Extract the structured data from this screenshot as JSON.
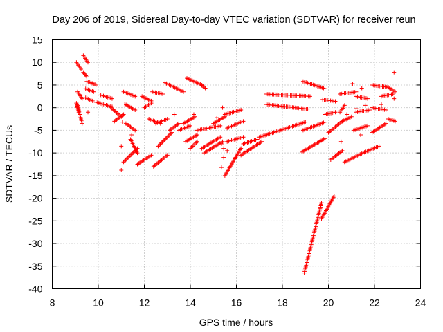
{
  "chart_data": {
    "type": "scatter",
    "title": "Day 206 of 2019, Sidereal Day-to-day VTEC variation (SDTVAR) for receiver reun",
    "xlabel": "GPS time / hours",
    "ylabel": "SDTVAR / TECUs",
    "xlim": [
      8,
      24
    ],
    "ylim": [
      -40,
      15
    ],
    "xticks": [
      8,
      10,
      12,
      14,
      16,
      18,
      20,
      22,
      24
    ],
    "yticks": [
      15,
      10,
      5,
      0,
      -5,
      -10,
      -15,
      -20,
      -25,
      -30,
      -35,
      -40
    ],
    "grid": true,
    "legend": "none",
    "marker": "+",
    "series": [
      {
        "name": "SDTVAR",
        "color": "#ff0000",
        "segments": [
          {
            "x0": 9.05,
            "x1": 9.25,
            "y0": 10.0,
            "y1": 8.5
          },
          {
            "x0": 9.35,
            "x1": 9.55,
            "y0": 11.5,
            "y1": 10.0
          },
          {
            "x0": 9.1,
            "x1": 9.3,
            "y0": 3.5,
            "y1": 2.0
          },
          {
            "x0": 9.05,
            "x1": 9.15,
            "y0": 1.0,
            "y1": -1.0
          },
          {
            "x0": 9.1,
            "x1": 9.3,
            "y0": 0.5,
            "y1": -3.5
          },
          {
            "x0": 9.35,
            "x1": 9.5,
            "y0": 7.8,
            "y1": 6.8
          },
          {
            "x0": 9.5,
            "x1": 9.85,
            "y0": 5.8,
            "y1": 5.2
          },
          {
            "x0": 9.45,
            "x1": 9.8,
            "y0": 4.2,
            "y1": 3.5
          },
          {
            "x0": 9.45,
            "x1": 9.75,
            "y0": 2.2,
            "y1": 1.5
          },
          {
            "x0": 9.9,
            "x1": 10.6,
            "y0": 1.2,
            "y1": 0.2
          },
          {
            "x0": 10.1,
            "x1": 10.6,
            "y0": 2.8,
            "y1": 2.0
          },
          {
            "x0": 10.55,
            "x1": 11.0,
            "y0": 0.0,
            "y1": -2.0
          },
          {
            "x0": 10.7,
            "x1": 11.1,
            "y0": -3.0,
            "y1": -1.5
          },
          {
            "x0": 11.1,
            "x1": 11.6,
            "y0": 3.5,
            "y1": 2.5
          },
          {
            "x0": 11.15,
            "x1": 11.6,
            "y0": 0.8,
            "y1": -0.5
          },
          {
            "x0": 11.2,
            "x1": 11.6,
            "y0": -3.5,
            "y1": -5.0
          },
          {
            "x0": 11.4,
            "x1": 11.7,
            "y0": -7.0,
            "y1": -10.0
          },
          {
            "x0": 11.1,
            "x1": 11.7,
            "y0": -12.0,
            "y1": -9.0
          },
          {
            "x0": 11.7,
            "x1": 12.3,
            "y0": -12.5,
            "y1": -10.5
          },
          {
            "x0": 11.9,
            "x1": 12.3,
            "y0": 2.5,
            "y1": 1.5
          },
          {
            "x0": 12.0,
            "x1": 12.3,
            "y0": 0.0,
            "y1": 1.0
          },
          {
            "x0": 12.2,
            "x1": 12.7,
            "y0": -2.5,
            "y1": -3.5
          },
          {
            "x0": 12.35,
            "x1": 12.8,
            "y0": 3.5,
            "y1": 3.0
          },
          {
            "x0": 12.5,
            "x1": 13.0,
            "y0": -3.5,
            "y1": -2.5
          },
          {
            "x0": 12.6,
            "x1": 13.2,
            "y0": -8.5,
            "y1": -5.5
          },
          {
            "x0": 12.4,
            "x1": 13.0,
            "y0": -13.0,
            "y1": -10.5
          },
          {
            "x0": 12.9,
            "x1": 13.7,
            "y0": 5.5,
            "y1": 3.5
          },
          {
            "x0": 13.1,
            "x1": 13.5,
            "y0": -5.0,
            "y1": -3.5
          },
          {
            "x0": 13.5,
            "x1": 14.0,
            "y0": -5.0,
            "y1": -4.0
          },
          {
            "x0": 13.85,
            "x1": 14.5,
            "y0": 6.5,
            "y1": 5.0
          },
          {
            "x0": 14.5,
            "x1": 14.65,
            "y0": 4.9,
            "y1": 4.3
          },
          {
            "x0": 13.7,
            "x1": 14.2,
            "y0": -3.5,
            "y1": -2.0
          },
          {
            "x0": 13.8,
            "x1": 14.3,
            "y0": -7.5,
            "y1": -6.0
          },
          {
            "x0": 14.0,
            "x1": 14.3,
            "y0": -9.0,
            "y1": -7.5
          },
          {
            "x0": 14.3,
            "x1": 15.3,
            "y0": -5.0,
            "y1": -4.0
          },
          {
            "x0": 14.5,
            "x1": 15.3,
            "y0": -9.0,
            "y1": -6.5
          },
          {
            "x0": 14.6,
            "x1": 15.4,
            "y0": -10.0,
            "y1": -7.5
          },
          {
            "x0": 15.0,
            "x1": 15.5,
            "y0": -3.5,
            "y1": -2.0
          },
          {
            "x0": 15.5,
            "x1": 16.2,
            "y0": -15.0,
            "y1": -9.0
          },
          {
            "x0": 15.5,
            "x1": 16.2,
            "y0": -1.5,
            "y1": -0.5
          },
          {
            "x0": 15.6,
            "x1": 16.3,
            "y0": -4.5,
            "y1": -3.0
          },
          {
            "x0": 15.6,
            "x1": 16.3,
            "y0": -7.5,
            "y1": -6.5
          },
          {
            "x0": 16.2,
            "x1": 17.1,
            "y0": -10.5,
            "y1": -7.5
          },
          {
            "x0": 16.3,
            "x1": 16.9,
            "y0": -8.0,
            "y1": -7.0
          },
          {
            "x0": 17.0,
            "x1": 19.0,
            "y0": -6.5,
            "y1": -3.2
          },
          {
            "x0": 17.3,
            "x1": 19.2,
            "y0": 3.0,
            "y1": 2.5
          },
          {
            "x0": 17.3,
            "x1": 19.1,
            "y0": 0.7,
            "y1": -0.3
          },
          {
            "x0": 18.9,
            "x1": 19.85,
            "y0": 5.8,
            "y1": 4.2
          },
          {
            "x0": 18.85,
            "x1": 19.85,
            "y0": -9.8,
            "y1": -6.8
          },
          {
            "x0": 18.9,
            "x1": 19.85,
            "y0": -5.0,
            "y1": -3.2
          },
          {
            "x0": 18.95,
            "x1": 19.7,
            "y0": -36.5,
            "y1": -21.0
          },
          {
            "x0": 19.7,
            "x1": 20.25,
            "y0": -24.5,
            "y1": -19.5
          },
          {
            "x0": 19.75,
            "x1": 20.3,
            "y0": 1.8,
            "y1": 1.4
          },
          {
            "x0": 19.85,
            "x1": 20.3,
            "y0": -1.5,
            "y1": -1.0
          },
          {
            "x0": 20.0,
            "x1": 20.6,
            "y0": -5.5,
            "y1": -3.0
          },
          {
            "x0": 20.1,
            "x1": 20.6,
            "y0": -11.5,
            "y1": -9.5
          },
          {
            "x0": 20.5,
            "x1": 21.2,
            "y0": 3.0,
            "y1": 3.5
          },
          {
            "x0": 20.5,
            "x1": 20.7,
            "y0": -1.0,
            "y1": 0.5
          },
          {
            "x0": 20.6,
            "x1": 21.0,
            "y0": -3.0,
            "y1": -2.0
          },
          {
            "x0": 20.7,
            "x1": 21.5,
            "y0": -12.0,
            "y1": -10.0
          },
          {
            "x0": 21.1,
            "x1": 21.7,
            "y0": -5.0,
            "y1": -4.0
          },
          {
            "x0": 21.2,
            "x1": 21.7,
            "y0": 2.5,
            "y1": 2.0
          },
          {
            "x0": 21.2,
            "x1": 21.8,
            "y0": -1.0,
            "y1": -0.5
          },
          {
            "x0": 21.5,
            "x1": 22.2,
            "y0": -10.0,
            "y1": -8.5
          },
          {
            "x0": 21.9,
            "x1": 22.6,
            "y0": 5.0,
            "y1": 4.5
          },
          {
            "x0": 21.9,
            "x1": 22.5,
            "y0": 0.0,
            "y1": -0.5
          },
          {
            "x0": 21.9,
            "x1": 22.5,
            "y0": -5.5,
            "y1": -3.5
          },
          {
            "x0": 22.3,
            "x1": 22.8,
            "y0": 2.5,
            "y1": 3.0
          },
          {
            "x0": 22.6,
            "x1": 22.9,
            "y0": 4.5,
            "y1": 3.5
          },
          {
            "x0": 22.6,
            "x1": 22.9,
            "y0": -2.5,
            "y1": -3.0
          }
        ],
        "isolated": [
          {
            "x": 9.55,
            "y": -1.0
          },
          {
            "x": 9.9,
            "y": 5.0
          },
          {
            "x": 11.0,
            "y": -13.8
          },
          {
            "x": 11.0,
            "y": -8.5
          },
          {
            "x": 11.05,
            "y": -3.2
          },
          {
            "x": 11.45,
            "y": -6.0
          },
          {
            "x": 13.3,
            "y": -1.5
          },
          {
            "x": 14.15,
            "y": -1.5
          },
          {
            "x": 15.15,
            "y": -2.2
          },
          {
            "x": 15.4,
            "y": 0.0
          },
          {
            "x": 15.35,
            "y": -13.2
          },
          {
            "x": 15.45,
            "y": -11.0
          },
          {
            "x": 15.45,
            "y": -9.0
          },
          {
            "x": 15.35,
            "y": -8.0
          },
          {
            "x": 15.6,
            "y": -9.5
          },
          {
            "x": 20.8,
            "y": -1.5
          },
          {
            "x": 20.55,
            "y": -7.5
          },
          {
            "x": 21.05,
            "y": 5.3
          },
          {
            "x": 21.45,
            "y": 4.3
          },
          {
            "x": 21.2,
            "y": -0.2
          },
          {
            "x": 22.85,
            "y": 7.8
          },
          {
            "x": 22.85,
            "y": 2.0
          },
          {
            "x": 21.6,
            "y": 0.5
          },
          {
            "x": 21.4,
            "y": -6.0
          },
          {
            "x": 22.3,
            "y": 0.7
          }
        ]
      }
    ]
  }
}
